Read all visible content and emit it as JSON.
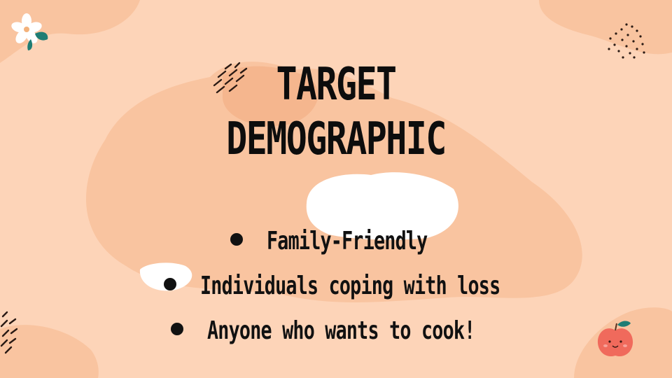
{
  "slide": {
    "title_line1": "TARGET",
    "title_line2": "DEMOGRAPHIC",
    "bullets": [
      "Family-Friendly",
      "Individuals coping with loss",
      "Anyone who wants to cook!"
    ]
  },
  "decorations": [
    "flower-icon",
    "dots-pattern-icon",
    "dash-marks-icon",
    "apple-icon"
  ],
  "colors": {
    "background": "#fdd4b8",
    "blob": "#f9c4a0",
    "blob_dark": "#f5b68e",
    "white_blob": "#ffffff",
    "text": "#111111",
    "apple": "#f06a5c",
    "leaf": "#1f7d74"
  }
}
